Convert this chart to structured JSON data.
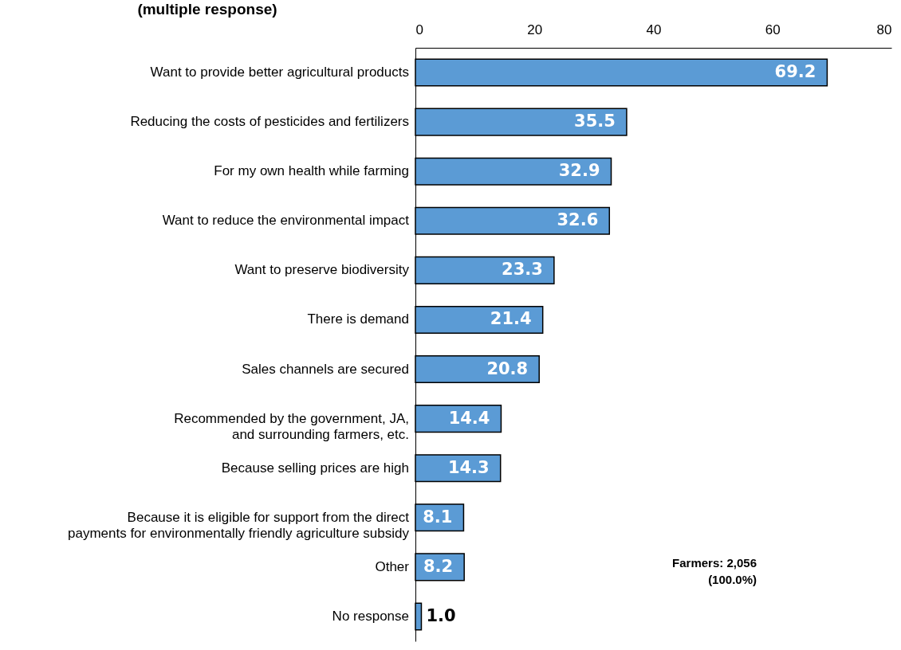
{
  "chart_data": {
    "type": "bar",
    "orientation": "horizontal",
    "title": "(multiple response)",
    "categories": [
      "Want to provide better agricultural products",
      "Reducing the costs of pesticides and fertilizers",
      "For my own health while farming",
      "Want to reduce the environmental impact",
      "Want to preserve biodiversity",
      "There is demand",
      "Sales channels are secured",
      "Recommended by the government, JA, and surrounding farmers, etc.",
      "Because selling prices are high",
      "Because it is eligible for support from the direct payments for environmentally friendly agriculture subsidy",
      "Other",
      "No response"
    ],
    "values": [
      69.2,
      35.5,
      32.9,
      32.6,
      23.3,
      21.4,
      20.8,
      14.4,
      14.3,
      8.1,
      8.2,
      1.0
    ],
    "value_labels": [
      "69.2",
      "35.5",
      "32.9",
      "32.6",
      "23.3",
      "21.4",
      "20.8",
      "14.4",
      "14.3",
      "8.1",
      "8.2",
      "1.0"
    ],
    "color": "#5b9bd5",
    "xlim": [
      0,
      80
    ],
    "xticks": [
      0,
      20,
      40,
      60,
      80
    ],
    "grid": false,
    "annotations": [
      "Farmers: 2,056",
      "(100.0%)"
    ]
  }
}
